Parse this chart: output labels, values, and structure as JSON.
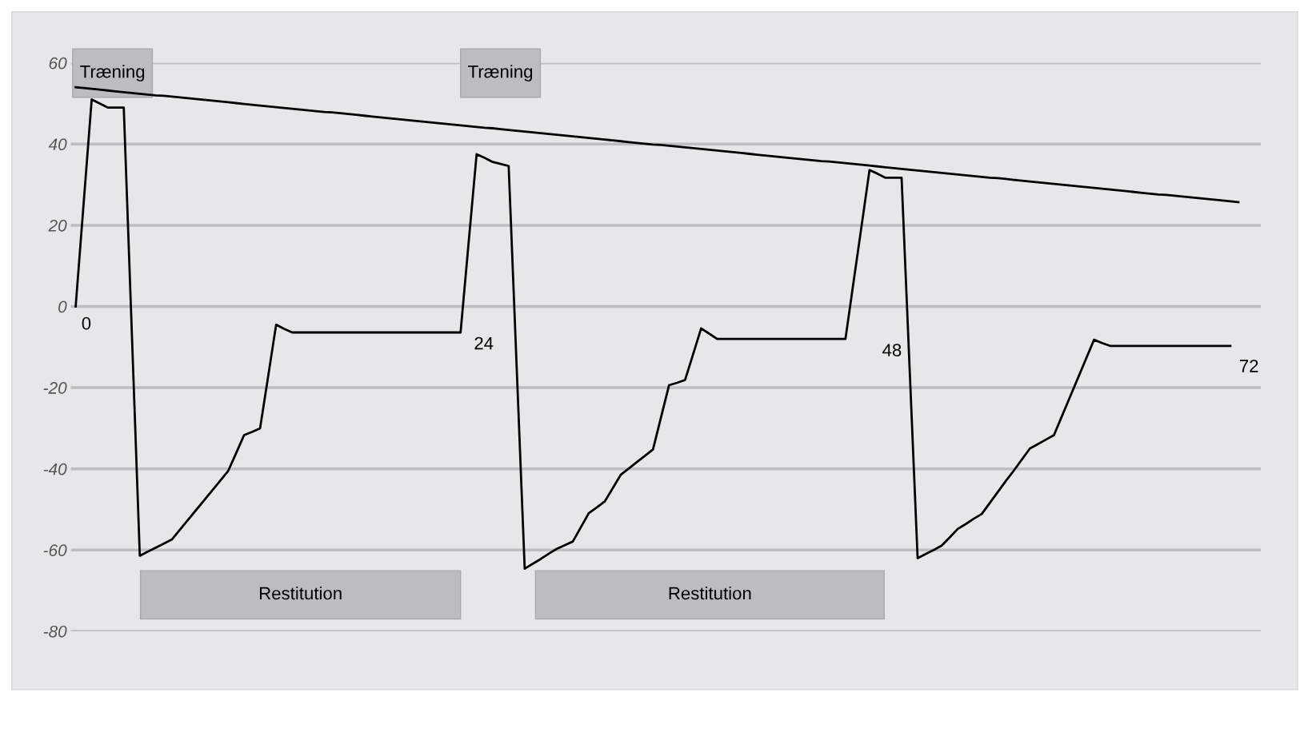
{
  "chart_data": {
    "type": "line",
    "categories": [
      null,
      null,
      null,
      null,
      null,
      null,
      null,
      null,
      null,
      null,
      null,
      null,
      null,
      null,
      null,
      null,
      null,
      null,
      null,
      null,
      null,
      null,
      null,
      null,
      null,
      null,
      null,
      null,
      null,
      null,
      null,
      null,
      null,
      null,
      null,
      null,
      null,
      null,
      null,
      null,
      null,
      null,
      null,
      null,
      null,
      null,
      null,
      null,
      null,
      null,
      null,
      null,
      null,
      null,
      null,
      null,
      null,
      null,
      null,
      null,
      null,
      null,
      null,
      null,
      null,
      null,
      null,
      null,
      null,
      null,
      null,
      null,
      null,
      null,
      null,
      null,
      null,
      null,
      null,
      null,
      null,
      null,
      null,
      null,
      null,
      null,
      null,
      null,
      null,
      null,
      null,
      null,
      null,
      null,
      null,
      null,
      null,
      null,
      null,
      null,
      null,
      null,
      null,
      null,
      null,
      null,
      null,
      null,
      null,
      null,
      null,
      null,
      null,
      null,
      null,
      null,
      null,
      null,
      null,
      null,
      null,
      null,
      null,
      null,
      null,
      null,
      null,
      null,
      null,
      null,
      null,
      null,
      null,
      null,
      null,
      null,
      null,
      null,
      null,
      null,
      null,
      null,
      null,
      null,
      null,
      null,
      null
    ],
    "series": [
      {
        "color": "#000000",
        "values": [
          0,
          25.5,
          51,
          50,
          49,
          49,
          49,
          -6.2,
          -61.4,
          -60.4,
          -59.4,
          -58.4,
          -57.4,
          -55.0,
          -52.6,
          -50.2,
          -47.8,
          -45.4,
          -43.0,
          -40.6,
          -36.2,
          -31.7,
          -30.9,
          -30,
          -17.3,
          -4.5,
          -5.5,
          -6.4,
          -6.4,
          -6.4,
          -6.4,
          -6.4,
          -6.4,
          -6.4,
          -6.4,
          -6.4,
          -6.4,
          -6.4,
          -6.4,
          -6.4,
          -6.4,
          -6.4,
          -6.4,
          -6.4,
          -6.4,
          -6.4,
          -6.4,
          -6.4,
          -6.4,
          15.6,
          37.5,
          36.6,
          35.6,
          35.1,
          34.6,
          -15.0,
          -64.6,
          -63.4,
          -62.2,
          -60.9,
          -59.7,
          -58.8,
          -57.9,
          -54.4,
          -50.9,
          -49.5,
          -48,
          -44.7,
          -41.4,
          -39.9,
          -38.3,
          -36.8,
          -35.2,
          -27.3,
          -19.4,
          -18.8,
          -18.1,
          -11.8,
          -5.4,
          -6.7,
          -8,
          -8,
          -8,
          -8,
          -8,
          -8,
          -8,
          -8,
          -8,
          -8,
          -8,
          -8,
          -8,
          -8,
          -8,
          -8,
          -8,
          5.9,
          19.7,
          33.6,
          32.7,
          31.7,
          31.7,
          31.7,
          -15.2,
          -62,
          -61.0,
          -60.0,
          -58.9,
          -56.9,
          -54.8,
          -53.6,
          -52.3,
          -51.1,
          -48.4,
          -45.7,
          -43.0,
          -40.4,
          -37.7,
          -35,
          -33.9,
          -32.8,
          -31.7,
          -27.0,
          -22.3,
          -17.6,
          -12.9,
          -8.2,
          -9.0,
          -9.7,
          -9.7,
          -9.7,
          -9.7,
          -9.7,
          -9.7,
          -9.7,
          -9.7,
          -9.7,
          -9.7,
          -9.7,
          -9.7,
          -9.7,
          -9.7,
          -9.7,
          -9.7,
          null,
          null
        ]
      },
      {
        "color": "#000000",
        "values": [
          54.0,
          53.8,
          53.6,
          53.4,
          53.2,
          53.0,
          52.8,
          52.6,
          52.4,
          52.2,
          52.0,
          51.9,
          51.7,
          51.5,
          51.3,
          51.1,
          50.9,
          50.7,
          50.5,
          50.3,
          50.1,
          49.9,
          49.7,
          49.5,
          49.3,
          49.1,
          48.9,
          48.7,
          48.5,
          48.3,
          48.1,
          47.9,
          47.8,
          47.6,
          47.4,
          47.2,
          47.0,
          46.8,
          46.6,
          46.4,
          46.2,
          46.0,
          45.8,
          45.6,
          45.4,
          45.2,
          45.0,
          44.8,
          44.6,
          44.4,
          44.2,
          44.0,
          43.9,
          43.7,
          43.5,
          43.3,
          43.1,
          42.9,
          42.7,
          42.5,
          42.3,
          42.1,
          41.9,
          41.7,
          41.5,
          41.3,
          41.1,
          40.9,
          40.7,
          40.5,
          40.3,
          40.1,
          39.9,
          39.8,
          39.6,
          39.4,
          39.2,
          39.0,
          38.8,
          38.6,
          38.4,
          38.2,
          38.0,
          37.8,
          37.6,
          37.4,
          37.2,
          37.0,
          36.8,
          36.6,
          36.4,
          36.2,
          36.0,
          35.8,
          35.7,
          35.5,
          35.3,
          35.1,
          34.9,
          34.7,
          34.5,
          34.3,
          34.1,
          33.9,
          33.7,
          33.5,
          33.3,
          33.1,
          32.9,
          32.7,
          32.5,
          32.3,
          32.1,
          31.9,
          31.7,
          31.6,
          31.4,
          31.2,
          31.0,
          30.8,
          30.6,
          30.4,
          30.2,
          30.0,
          29.8,
          29.6,
          29.4,
          29.2,
          29.0,
          28.8,
          28.6,
          28.4,
          28.2,
          28.0,
          27.8,
          27.6,
          27.5,
          27.3,
          27.1,
          26.9,
          26.7,
          26.5,
          26.3,
          26.1,
          25.9,
          25.7,
          null
        ]
      }
    ],
    "annotations": [
      "0",
      "24",
      "48",
      "72",
      "Træning",
      "Træning",
      "Restitution",
      "Restitution"
    ],
    "ylim": [
      -80,
      60
    ],
    "yticks": [
      -80,
      -60,
      -40,
      -20,
      0,
      20,
      40,
      60
    ],
    "grid": "y",
    "tick_labels": "y",
    "marker": "none",
    "line_style": "solid"
  }
}
